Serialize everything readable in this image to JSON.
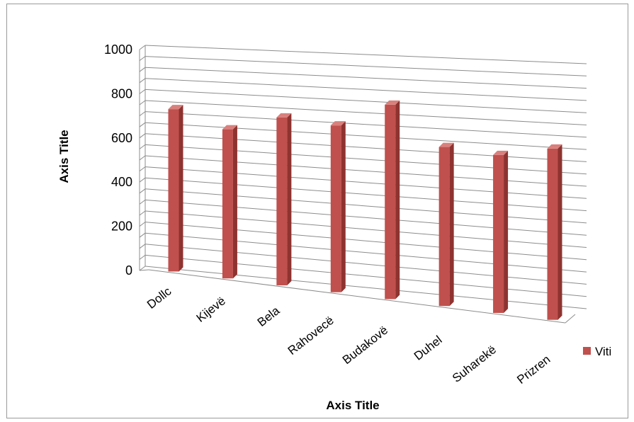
{
  "chart_data": {
    "type": "bar",
    "title": "",
    "xlabel": "Axis Title",
    "ylabel": "Axis Title",
    "ylim": [
      0,
      1000
    ],
    "yticks": [
      0,
      200,
      400,
      600,
      800,
      1000
    ],
    "grid": true,
    "legend_position": "right",
    "categories": [
      "Dollc",
      "Kijevë",
      "Bela",
      "Rahovecë",
      "Budakovë",
      "Duhel",
      "Suharekë",
      "Prizren"
    ],
    "series": [
      {
        "name": "Viti",
        "color": "#c0504d",
        "values": [
          735,
          675,
          760,
          755,
          880,
          720,
          715,
          775
        ]
      }
    ]
  }
}
